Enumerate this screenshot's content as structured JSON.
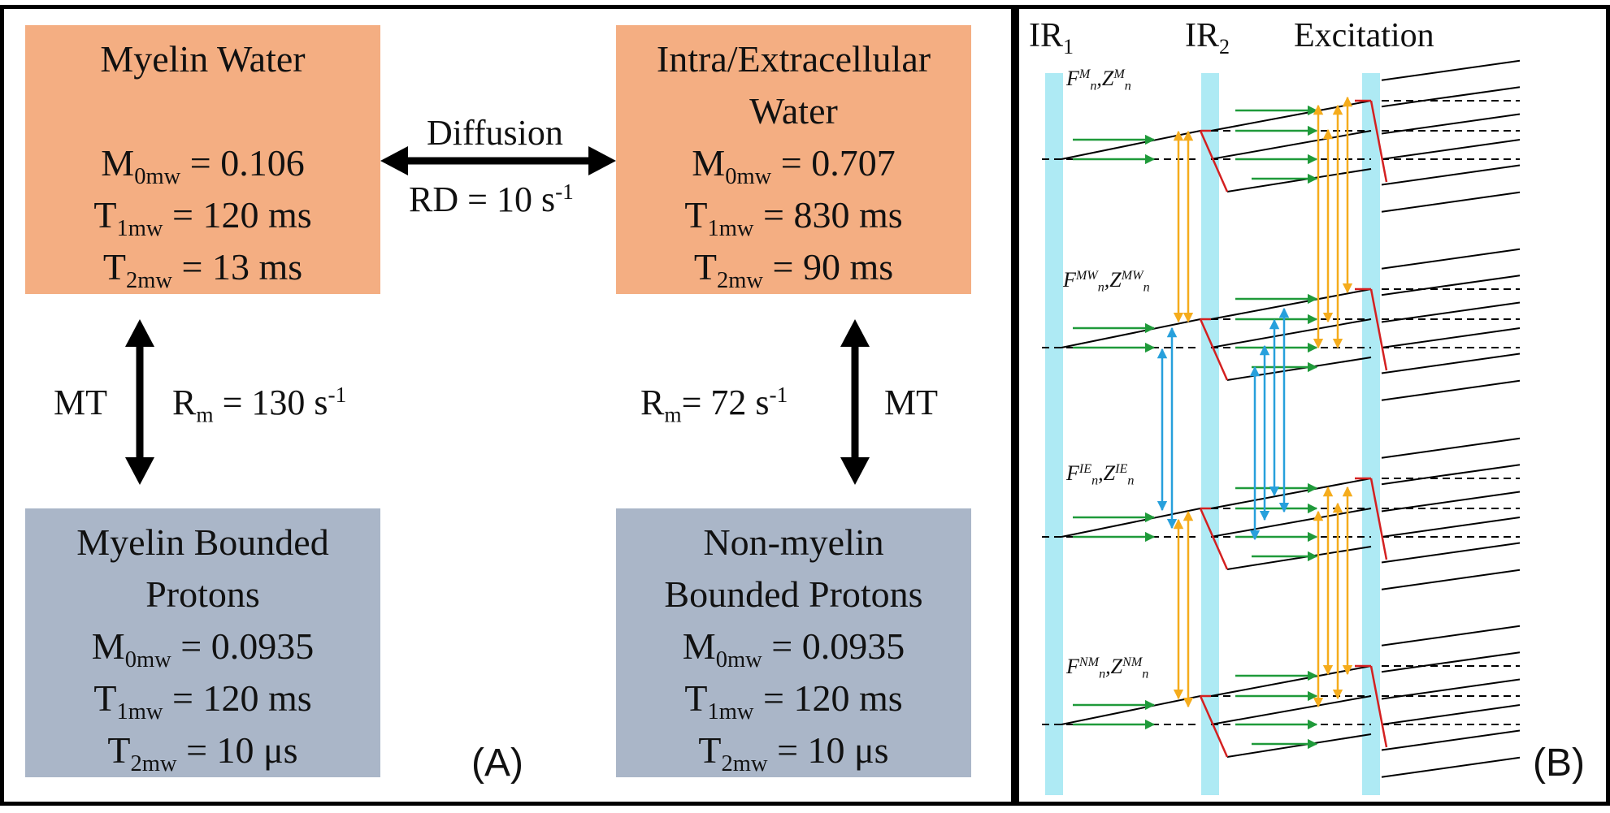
{
  "panel_a": {
    "tag": "(A)",
    "myelin_water": {
      "title": "Myelin Water",
      "m0_sym": "M",
      "m0_sub": "0mw",
      "m0_val": " = 0.106",
      "t1_sym": "T",
      "t1_sub": "1mw",
      "t1_val": " = 120 ms",
      "t2_sym": "T",
      "t2_sub": "2mw",
      "t2_val": " = 13 ms"
    },
    "ie_water": {
      "title_1": "Intra/Extracellular",
      "title_2": "Water",
      "m0_sym": "M",
      "m0_sub": "0mw",
      "m0_val": " = 0.707",
      "t1_sym": "T",
      "t1_sub": "1mw",
      "t1_val": " = 830 ms",
      "t2_sym": "T",
      "t2_sub": "2mw",
      "t2_val": " = 90 ms"
    },
    "myelin_bounded": {
      "title_1": "Myelin Bounded",
      "title_2": "Protons",
      "m0_sym": "M",
      "m0_sub": "0mw",
      "m0_val": " = 0.0935",
      "t1_sym": "T",
      "t1_sub": "1mw",
      "t1_val": " = 120 ms",
      "t2_sym": "T",
      "t2_sub": "2mw",
      "t2_val": " = 10 μs"
    },
    "nonmyelin_bounded": {
      "title_1": "Non-myelin",
      "title_2": "Bounded Protons",
      "m0_sym": "M",
      "m0_sub": "0mw",
      "m0_val": " = 0.0935",
      "t1_sym": "T",
      "t1_sub": "1mw",
      "t1_val": " = 120 ms",
      "t2_sym": "T",
      "t2_sub": "2mw",
      "t2_val": " = 10 μs"
    },
    "diffusion_label": "Diffusion",
    "rd_text": "RD = 10 s",
    "rd_exp": "-1",
    "mt_left": "MT",
    "rm_left_sym": "R",
    "rm_left_sub": "m",
    "rm_left_val": " = 130 s",
    "rm_left_exp": "-1",
    "mt_right": "MT",
    "rm_right_sym": "R",
    "rm_right_sub": "m",
    "rm_right_val": "= 72 s",
    "rm_right_exp": "-1"
  },
  "panel_b": {
    "tag": "(B)",
    "ir1": "IR",
    "ir1_sub": "1",
    "ir2": "IR",
    "ir2_sub": "2",
    "excitation": "Excitation",
    "row_labels": [
      {
        "f": "F",
        "f_sup": "M",
        "z": "Z",
        "z_sup": "M",
        "sub": "n"
      },
      {
        "f": "F",
        "f_sup": "MW",
        "z": "Z",
        "z_sup": "MW",
        "sub": "n"
      },
      {
        "f": "F",
        "f_sup": "IE",
        "z": "Z",
        "z_sup": "IE",
        "sub": "n"
      },
      {
        "f": "F",
        "f_sup": "NM",
        "z": "Z",
        "z_sup": "NM",
        "sub": "n"
      }
    ]
  },
  "colors": {
    "water_box": "#f4ae82",
    "proton_box": "#aab6c8",
    "pulse_band": "#aeeaf4",
    "green_arrow": "#1f9a3a",
    "orange_arrow": "#f5ac1c",
    "blue_arrow": "#27a0dc",
    "red_line": "#d42020"
  }
}
